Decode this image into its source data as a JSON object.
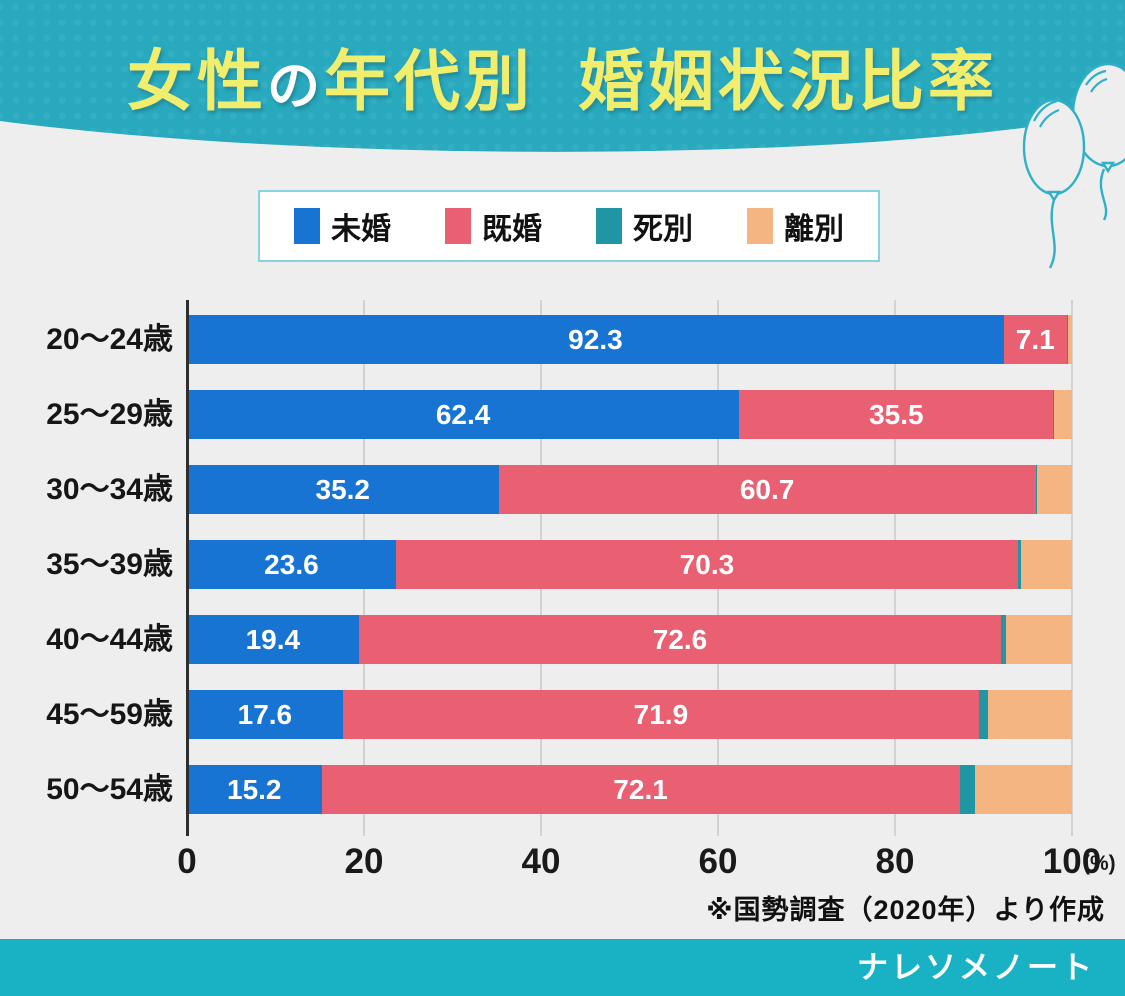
{
  "header": {
    "title": {
      "part1": "女性",
      "part2": "の",
      "part3": "年代別",
      "part4": "婚姻状況比率"
    },
    "background_color": "#28a9be",
    "title_yellow": "#f2ee6d",
    "title_white": "#ffffff"
  },
  "legend": {
    "border_color": "#8ad2de"
  },
  "chart_data": {
    "type": "bar",
    "stacked": true,
    "orientation": "horizontal",
    "categories": [
      "20〜24歳",
      "25〜29歳",
      "30〜34歳",
      "35〜39歳",
      "40〜44歳",
      "45〜59歳",
      "50〜54歳"
    ],
    "series": [
      {
        "name": "未婚",
        "color": "#1774d3",
        "show_value_labels": true,
        "values": [
          92.3,
          62.4,
          35.2,
          23.6,
          19.4,
          17.6,
          15.2
        ]
      },
      {
        "name": "既婚",
        "color": "#e96072",
        "show_value_labels": true,
        "values": [
          7.1,
          35.5,
          60.7,
          70.3,
          72.6,
          71.9,
          72.1
        ]
      },
      {
        "name": "死別",
        "color": "#2095a4",
        "show_value_labels": false,
        "values": [
          0.1,
          0.1,
          0.2,
          0.3,
          0.6,
          1.0,
          1.7
        ]
      },
      {
        "name": "離別",
        "color": "#f5b583",
        "show_value_labels": false,
        "values": [
          0.5,
          2.0,
          3.9,
          5.8,
          7.4,
          9.5,
          11.0
        ]
      }
    ],
    "xlim": [
      0,
      100
    ],
    "xticks": [
      0,
      20,
      40,
      60,
      80,
      100
    ],
    "x_unit": "(%)",
    "gridlines": true,
    "legend_position": "top",
    "value_label_color": "#ffffff"
  },
  "footnote": "※国勢調査（2020年）より作成",
  "footer": {
    "brand": "ナレソメノート"
  }
}
